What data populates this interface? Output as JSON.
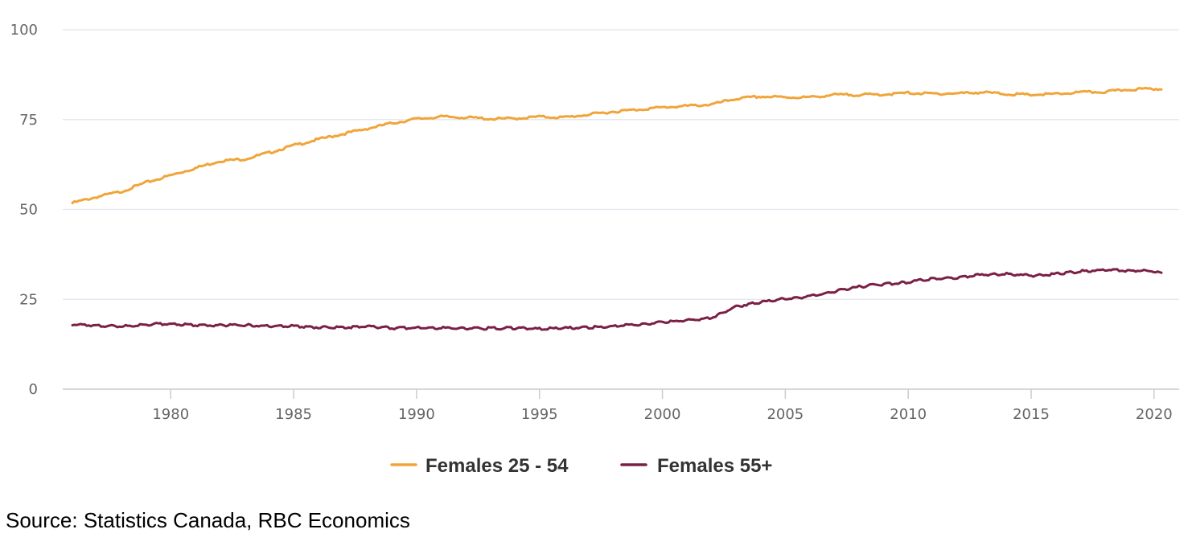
{
  "colors": {
    "series_1": "#f0a53a",
    "series_2": "#7b2045",
    "gridline": "#e1e6ef",
    "axis": "#cccccc",
    "tick_text": "#666666",
    "legend_text": "#333333"
  },
  "source": "Source: Statistics Canada, RBC Economics",
  "chart_data": {
    "type": "line",
    "title": "",
    "xlabel": "",
    "ylabel": "",
    "xlim": [
      1976.0,
      2020.3
    ],
    "ylim": [
      0,
      100
    ],
    "grid": true,
    "legend_position": "bottom-center",
    "x_ticks": [
      {
        "value": 1980,
        "label": "1980"
      },
      {
        "value": 1985,
        "label": "1985"
      },
      {
        "value": 1990,
        "label": "1990"
      },
      {
        "value": 1995,
        "label": "1995"
      },
      {
        "value": 2000,
        "label": "2000"
      },
      {
        "value": 2005,
        "label": "2005"
      },
      {
        "value": 2010,
        "label": "2010"
      },
      {
        "value": 2015,
        "label": "2015"
      },
      {
        "value": 2020,
        "label": "2020"
      }
    ],
    "y_ticks": [
      {
        "value": 0,
        "label": "0"
      },
      {
        "value": 25,
        "label": "25"
      },
      {
        "value": 50,
        "label": "50"
      },
      {
        "value": 75,
        "label": "75"
      },
      {
        "value": 100,
        "label": "100"
      }
    ],
    "series": [
      {
        "name": "Females 25 - 54",
        "color": "#f0a53a",
        "x": [
          1976.0,
          1977.0,
          1978.0,
          1979.0,
          1980.0,
          1981.0,
          1982.0,
          1983.0,
          1984.0,
          1985.0,
          1986.0,
          1987.0,
          1988.0,
          1989.0,
          1990.0,
          1991.0,
          1992.0,
          1993.0,
          1994.0,
          1995.0,
          1996.0,
          1997.0,
          1998.0,
          1999.0,
          2000.0,
          2001.0,
          2002.0,
          2003.0,
          2004.0,
          2005.0,
          2006.0,
          2007.0,
          2008.0,
          2009.0,
          2010.0,
          2011.0,
          2012.0,
          2013.0,
          2014.0,
          2015.0,
          2016.0,
          2017.0,
          2018.0,
          2019.0,
          2020.0,
          2020.3
        ],
        "values": [
          51.8,
          53.5,
          55.0,
          57.5,
          59.5,
          61.5,
          63.5,
          64.0,
          65.8,
          67.8,
          69.5,
          71.0,
          72.5,
          74.0,
          75.2,
          75.8,
          75.6,
          75.2,
          75.3,
          75.8,
          75.6,
          76.4,
          77.2,
          77.8,
          78.4,
          78.8,
          79.2,
          80.8,
          81.4,
          81.2,
          81.2,
          81.9,
          81.9,
          82.0,
          82.4,
          82.2,
          82.3,
          82.6,
          82.1,
          81.9,
          82.1,
          82.6,
          82.7,
          83.4,
          83.6,
          83.4
        ]
      },
      {
        "name": "Females 55+",
        "color": "#7b2045",
        "x": [
          1976.0,
          1977.0,
          1978.0,
          1979.0,
          1980.0,
          1981.0,
          1982.0,
          1983.0,
          1984.0,
          1985.0,
          1986.0,
          1987.0,
          1988.0,
          1989.0,
          1990.0,
          1991.0,
          1992.0,
          1993.0,
          1994.0,
          1995.0,
          1996.0,
          1997.0,
          1998.0,
          1999.0,
          2000.0,
          2001.0,
          2002.0,
          2003.0,
          2004.0,
          2005.0,
          2006.0,
          2007.0,
          2008.0,
          2009.0,
          2010.0,
          2011.0,
          2012.0,
          2013.0,
          2014.0,
          2015.0,
          2016.0,
          2017.0,
          2018.0,
          2019.0,
          2020.0,
          2020.3
        ],
        "values": [
          18.0,
          17.7,
          17.4,
          18.0,
          18.2,
          17.8,
          17.8,
          17.8,
          17.6,
          17.6,
          17.2,
          17.2,
          17.4,
          17.0,
          17.0,
          17.0,
          16.9,
          16.9,
          17.0,
          16.8,
          17.0,
          17.2,
          17.5,
          18.0,
          18.6,
          19.2,
          19.8,
          23.0,
          24.2,
          25.2,
          25.8,
          27.2,
          28.5,
          29.2,
          29.8,
          30.8,
          31.0,
          31.8,
          32.0,
          31.6,
          32.0,
          32.8,
          33.2,
          33.0,
          32.8,
          32.4
        ]
      }
    ]
  }
}
